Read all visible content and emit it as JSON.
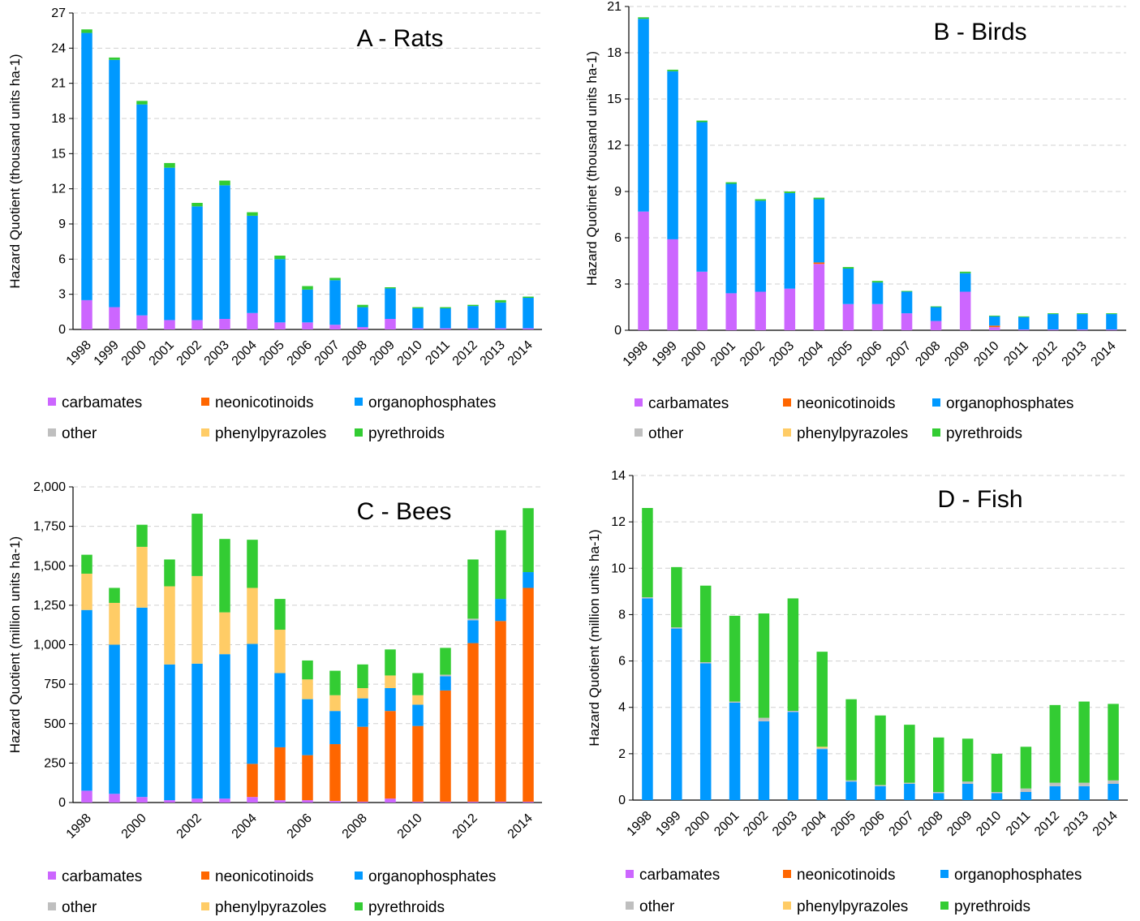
{
  "legend": [
    {
      "key": "carbamates",
      "label": "carbamates",
      "color": "#CC66FF"
    },
    {
      "key": "neonicotinoids",
      "label": "neonicotinoids",
      "color": "#FF6600"
    },
    {
      "key": "organophosphates",
      "label": "organophosphates",
      "color": "#0099FF"
    },
    {
      "key": "other",
      "label": "other",
      "color": "#BFBFBF"
    },
    {
      "key": "phenylpyrazoles",
      "label": "phenylpyrazoles",
      "color": "#FFCC66"
    },
    {
      "key": "pyrethroids",
      "label": "pyrethroids",
      "color": "#33CC33"
    }
  ],
  "chart_data": [
    {
      "id": "rats",
      "type": "bar",
      "stacked": true,
      "title": "A - Rats",
      "ylabel": "Hazard Quotient (thousand units ha-1)",
      "ylim": [
        0,
        27
      ],
      "yticks": [
        0,
        3,
        6,
        9,
        12,
        15,
        18,
        21,
        24,
        27
      ],
      "ytick_labels": [
        "0",
        "3",
        "6",
        "9",
        "12",
        "15",
        "18",
        "21",
        "24",
        "27"
      ],
      "categories": [
        "1998",
        "1999",
        "2000",
        "2001",
        "2002",
        "2003",
        "2004",
        "2005",
        "2006",
        "2007",
        "2008",
        "2009",
        "2010",
        "2011",
        "2012",
        "2013",
        "2014"
      ],
      "xtick_labels": [
        "1998",
        "1999",
        "2000",
        "2001",
        "2002",
        "2003",
        "2004",
        "2005",
        "2006",
        "2007",
        "2008",
        "2009",
        "2010",
        "2011",
        "2012",
        "2013",
        "2014"
      ],
      "grid": true,
      "series": [
        {
          "key": "carbamates",
          "values": [
            2.5,
            1.9,
            1.2,
            0.8,
            0.8,
            0.9,
            1.4,
            0.6,
            0.6,
            0.4,
            0.2,
            0.9,
            0.1,
            0.1,
            0.1,
            0.1,
            0.1
          ]
        },
        {
          "key": "neonicotinoids",
          "values": [
            0,
            0,
            0,
            0,
            0,
            0,
            0,
            0,
            0,
            0,
            0,
            0,
            0,
            0,
            0,
            0,
            0
          ]
        },
        {
          "key": "organophosphates",
          "values": [
            22.8,
            21.1,
            18.0,
            13.0,
            9.7,
            11.4,
            8.3,
            5.4,
            2.8,
            3.8,
            1.7,
            2.6,
            1.7,
            1.7,
            1.9,
            2.2,
            2.6
          ]
        },
        {
          "key": "other",
          "values": [
            0,
            0,
            0,
            0,
            0,
            0,
            0,
            0,
            0,
            0,
            0,
            0,
            0,
            0,
            0,
            0,
            0
          ]
        },
        {
          "key": "phenylpyrazoles",
          "values": [
            0,
            0,
            0,
            0,
            0,
            0,
            0,
            0,
            0,
            0,
            0,
            0,
            0,
            0,
            0,
            0,
            0
          ]
        },
        {
          "key": "pyrethroids",
          "values": [
            0.3,
            0.2,
            0.3,
            0.4,
            0.3,
            0.4,
            0.3,
            0.3,
            0.3,
            0.2,
            0.2,
            0.1,
            0.1,
            0.1,
            0.1,
            0.2,
            0.1
          ]
        }
      ]
    },
    {
      "id": "birds",
      "type": "bar",
      "stacked": true,
      "title": "B - Birds",
      "ylabel": "Hazard Quotinet (thousand units ha-1)",
      "ylim": [
        0,
        21
      ],
      "yticks": [
        0,
        3,
        6,
        9,
        12,
        15,
        18,
        21
      ],
      "ytick_labels": [
        "0",
        "3",
        "6",
        "9",
        "12",
        "15",
        "18",
        "21"
      ],
      "categories": [
        "1998",
        "1999",
        "2000",
        "2001",
        "2002",
        "2003",
        "2004",
        "2005",
        "2006",
        "2007",
        "2008",
        "2009",
        "2010",
        "2011",
        "2012",
        "2013",
        "2014"
      ],
      "xtick_labels": [
        "1998",
        "1999",
        "2000",
        "2001",
        "2002",
        "2003",
        "2004",
        "2005",
        "2006",
        "2007",
        "2008",
        "2009",
        "2010",
        "2011",
        "2012",
        "2013",
        "2014"
      ],
      "grid": true,
      "series": [
        {
          "key": "carbamates",
          "values": [
            7.7,
            5.9,
            3.8,
            2.4,
            2.5,
            2.7,
            4.3,
            1.7,
            1.7,
            1.1,
            0.6,
            2.5,
            0.2,
            0.05,
            0.05,
            0.05,
            0.05
          ]
        },
        {
          "key": "neonicotinoids",
          "values": [
            0,
            0,
            0,
            0,
            0,
            0,
            0.1,
            0,
            0,
            0,
            0,
            0,
            0.1,
            0,
            0,
            0,
            0
          ]
        },
        {
          "key": "organophosphates",
          "values": [
            12.5,
            10.9,
            9.7,
            7.1,
            5.9,
            6.2,
            4.1,
            2.3,
            1.4,
            1.4,
            0.9,
            1.2,
            0.6,
            0.8,
            1.0,
            1.0,
            1.0
          ]
        },
        {
          "key": "other",
          "values": [
            0,
            0,
            0,
            0,
            0,
            0,
            0,
            0,
            0,
            0,
            0,
            0,
            0,
            0,
            0,
            0,
            0
          ]
        },
        {
          "key": "phenylpyrazoles",
          "values": [
            0,
            0,
            0,
            0,
            0,
            0,
            0,
            0,
            0,
            0,
            0,
            0,
            0,
            0,
            0,
            0,
            0
          ]
        },
        {
          "key": "pyrethroids",
          "values": [
            0.1,
            0.1,
            0.1,
            0.1,
            0.1,
            0.1,
            0.1,
            0.1,
            0.1,
            0.05,
            0.05,
            0.1,
            0.05,
            0.05,
            0.05,
            0.05,
            0.05
          ]
        }
      ]
    },
    {
      "id": "bees",
      "type": "bar",
      "stacked": true,
      "title": "C - Bees",
      "ylabel": "Hazard Quotient (million units ha-1)",
      "ylim": [
        0,
        2000
      ],
      "yticks": [
        0,
        250,
        500,
        750,
        1000,
        1250,
        1500,
        1750,
        2000
      ],
      "ytick_labels": [
        "0",
        "250",
        "500",
        "750",
        "1,000",
        "1,250",
        "1,500",
        "1,750",
        "2,000"
      ],
      "categories": [
        "1998",
        "1999",
        "2000",
        "2001",
        "2002",
        "2003",
        "2004",
        "2005",
        "2006",
        "2007",
        "2008",
        "2009",
        "2010",
        "2011",
        "2012",
        "2013",
        "2014"
      ],
      "xtick_labels": [
        "1998",
        "",
        "2000",
        "",
        "2002",
        "",
        "2004",
        "",
        "2006",
        "",
        "2008",
        "",
        "2010",
        "",
        "2012",
        "",
        "2014"
      ],
      "grid": true,
      "series": [
        {
          "key": "carbamates",
          "values": [
            75,
            55,
            35,
            15,
            25,
            25,
            35,
            15,
            15,
            10,
            5,
            25,
            5,
            5,
            5,
            5,
            5
          ]
        },
        {
          "key": "neonicotinoids",
          "values": [
            0,
            0,
            0,
            0,
            0,
            0,
            210,
            335,
            285,
            360,
            475,
            555,
            480,
            705,
            1005,
            1145,
            1355
          ]
        },
        {
          "key": "organophosphates",
          "values": [
            1145,
            945,
            1200,
            860,
            855,
            915,
            760,
            470,
            355,
            210,
            180,
            145,
            135,
            90,
            145,
            140,
            100
          ]
        },
        {
          "key": "other",
          "values": [
            0,
            0,
            0,
            0,
            0,
            0,
            0,
            0,
            0,
            0,
            0,
            0,
            0,
            10,
            10,
            0,
            0
          ]
        },
        {
          "key": "phenylpyrazoles",
          "values": [
            230,
            265,
            385,
            495,
            555,
            265,
            355,
            275,
            125,
            100,
            65,
            80,
            60,
            0,
            0,
            0,
            0
          ]
        },
        {
          "key": "pyrethroids",
          "values": [
            120,
            95,
            140,
            170,
            395,
            465,
            305,
            195,
            120,
            155,
            150,
            165,
            140,
            170,
            375,
            435,
            405
          ]
        }
      ]
    },
    {
      "id": "fish",
      "type": "bar",
      "stacked": true,
      "title": "D - Fish",
      "ylabel": "Hazard Quotient (million units ha-1)",
      "ylim": [
        0,
        14
      ],
      "yticks": [
        0,
        2,
        4,
        6,
        8,
        10,
        12,
        14
      ],
      "ytick_labels": [
        "0",
        "2",
        "4",
        "6",
        "8",
        "10",
        "12",
        "14"
      ],
      "categories": [
        "1998",
        "1999",
        "2000",
        "2001",
        "2002",
        "2003",
        "2004",
        "2005",
        "2006",
        "2007",
        "2008",
        "2009",
        "2010",
        "2011",
        "2012",
        "2013",
        "2014"
      ],
      "xtick_labels": [
        "1998",
        "1999",
        "2000",
        "2001",
        "2002",
        "2003",
        "2004",
        "2005",
        "2006",
        "2007",
        "2008",
        "2009",
        "2010",
        "2011",
        "2012",
        "2013",
        "2014"
      ],
      "grid": true,
      "series": [
        {
          "key": "carbamates",
          "values": [
            0,
            0,
            0,
            0,
            0,
            0,
            0,
            0,
            0,
            0,
            0,
            0,
            0,
            0,
            0,
            0,
            0
          ]
        },
        {
          "key": "neonicotinoids",
          "values": [
            0,
            0,
            0,
            0,
            0,
            0,
            0,
            0,
            0,
            0,
            0,
            0,
            0,
            0,
            0,
            0,
            0
          ]
        },
        {
          "key": "organophosphates",
          "values": [
            8.7,
            7.4,
            5.9,
            4.2,
            3.4,
            3.8,
            2.2,
            0.8,
            0.6,
            0.7,
            0.3,
            0.7,
            0.3,
            0.35,
            0.6,
            0.6,
            0.7
          ]
        },
        {
          "key": "other",
          "values": [
            0.05,
            0.05,
            0.05,
            0.05,
            0.15,
            0.05,
            0.05,
            0.05,
            0.05,
            0.05,
            0.05,
            0.1,
            0.05,
            0.15,
            0.15,
            0.15,
            0.15
          ]
        },
        {
          "key": "phenylpyrazoles",
          "values": [
            0,
            0,
            0,
            0,
            0,
            0,
            0.05,
            0,
            0,
            0,
            0,
            0,
            0,
            0,
            0,
            0,
            0
          ]
        },
        {
          "key": "pyrethroids",
          "values": [
            3.85,
            2.6,
            3.3,
            3.7,
            4.5,
            4.85,
            4.1,
            3.5,
            3.0,
            2.5,
            2.35,
            1.85,
            1.65,
            1.8,
            3.35,
            3.5,
            3.3
          ]
        }
      ]
    }
  ]
}
